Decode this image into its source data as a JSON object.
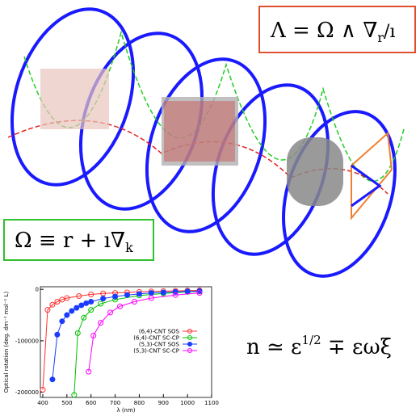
{
  "equations": [
    {
      "parts": [
        "Λ = Ω ∧ ∇",
        "r",
        "/ı"
      ]
    },
    {
      "parts": [
        "Ω ≡ r + ı∇",
        "k"
      ]
    },
    {
      "parts": [
        "n ≃ ε",
        "1/2",
        " ∓ εωξ"
      ]
    }
  ],
  "chart_data": {
    "type": "line",
    "x_label": "λ (nm)",
    "y_label": "Optical rotation (deg. dm⁻¹ mol⁻¹ L)",
    "xlim": [
      390,
      1100
    ],
    "xticks": [
      400,
      500,
      600,
      700,
      800,
      900,
      1000,
      1100
    ],
    "ylim": [
      -210000,
      5000
    ],
    "yticks": [
      0,
      -100000,
      -200000
    ],
    "series": [
      {
        "name": "(6,4)-CNT SOS",
        "color": "#ff3030",
        "x": [
          400,
          420,
          440,
          460,
          480,
          500,
          550,
          600,
          650,
          700,
          750,
          800,
          850,
          900,
          950,
          1000,
          1050
        ],
        "values": [
          -195000,
          -40000,
          -30000,
          -24000,
          -20000,
          -17000,
          -13000,
          -10000,
          -8000,
          -7000,
          -6000,
          -5000,
          -4000,
          -3500,
          -3000,
          -2500,
          -2000
        ]
      },
      {
        "name": "(6,4)-CNT SC-CP",
        "color": "#00c000",
        "x": [
          530,
          545,
          570,
          600,
          640,
          700,
          800,
          900,
          1000,
          1050
        ],
        "values": [
          -205000,
          -85000,
          -55000,
          -40000,
          -28000,
          -20000,
          -12000,
          -8000,
          -5000,
          -4000
        ]
      },
      {
        "name": "(5,3)-CNT SOS",
        "color": "#1a3cff",
        "x": [
          440,
          460,
          480,
          500,
          520,
          540,
          560,
          580,
          600,
          650,
          700,
          750,
          800,
          850,
          900,
          950,
          1000,
          1050
        ],
        "values": [
          -175000,
          -88000,
          -62000,
          -50000,
          -42000,
          -36000,
          -31000,
          -27000,
          -24000,
          -18000,
          -14000,
          -11000,
          -9000,
          -7000,
          -6000,
          -5000,
          -4000,
          -3500
        ]
      },
      {
        "name": "(5,3)-CNT SC-CP",
        "color": "#ff00ff",
        "x": [
          590,
          610,
          640,
          680,
          720,
          780,
          850,
          950,
          1050
        ],
        "values": [
          -160000,
          -90000,
          -65000,
          -45000,
          -33000,
          -24000,
          -17000,
          -11000,
          -7000
        ]
      }
    ]
  }
}
